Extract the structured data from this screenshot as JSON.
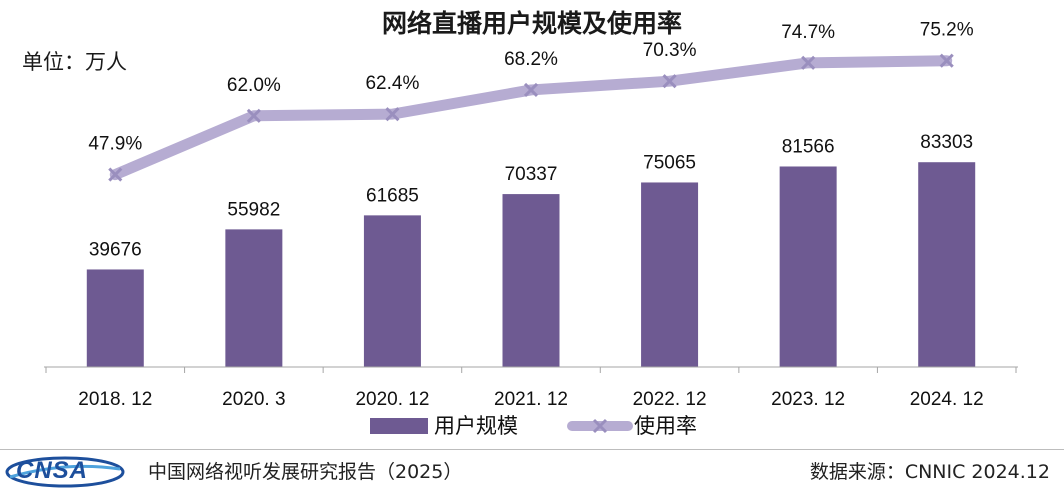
{
  "chart_data": {
    "type": "bar+line",
    "title": "网络直播用户规模及使用率",
    "unit_label": "单位：万人",
    "categories": [
      "2018. 12",
      "2020. 3",
      "2020. 12",
      "2021. 12",
      "2022. 12",
      "2023. 12",
      "2024. 12"
    ],
    "series": [
      {
        "name": "用户规模",
        "type": "bar",
        "values": [
          39676,
          55982,
          61685,
          70337,
          75065,
          81566,
          83303
        ],
        "labels": [
          "39676",
          "55982",
          "61685",
          "70337",
          "75065",
          "81566",
          "83303"
        ]
      },
      {
        "name": "使用率",
        "type": "line",
        "values": [
          47.9,
          62.0,
          62.4,
          68.2,
          70.3,
          74.7,
          75.2
        ],
        "labels": [
          "47.9%",
          "62.0%",
          "62.4%",
          "68.2%",
          "70.3%",
          "74.7%",
          "75.2%"
        ]
      }
    ],
    "bar_ylim": [
      0,
      120000
    ],
    "line_ylim": [
      20,
      90
    ],
    "legend_position": "bottom-center",
    "colors": {
      "bar": "#6e5a92",
      "line": "#b6acd2",
      "marker": "#9a8fbe"
    }
  },
  "footer": {
    "logo_text": "CNSA",
    "source_left": "中国网络视听发展研究报告（2025）",
    "source_right": "数据来源：CNNIC  2024.12"
  }
}
